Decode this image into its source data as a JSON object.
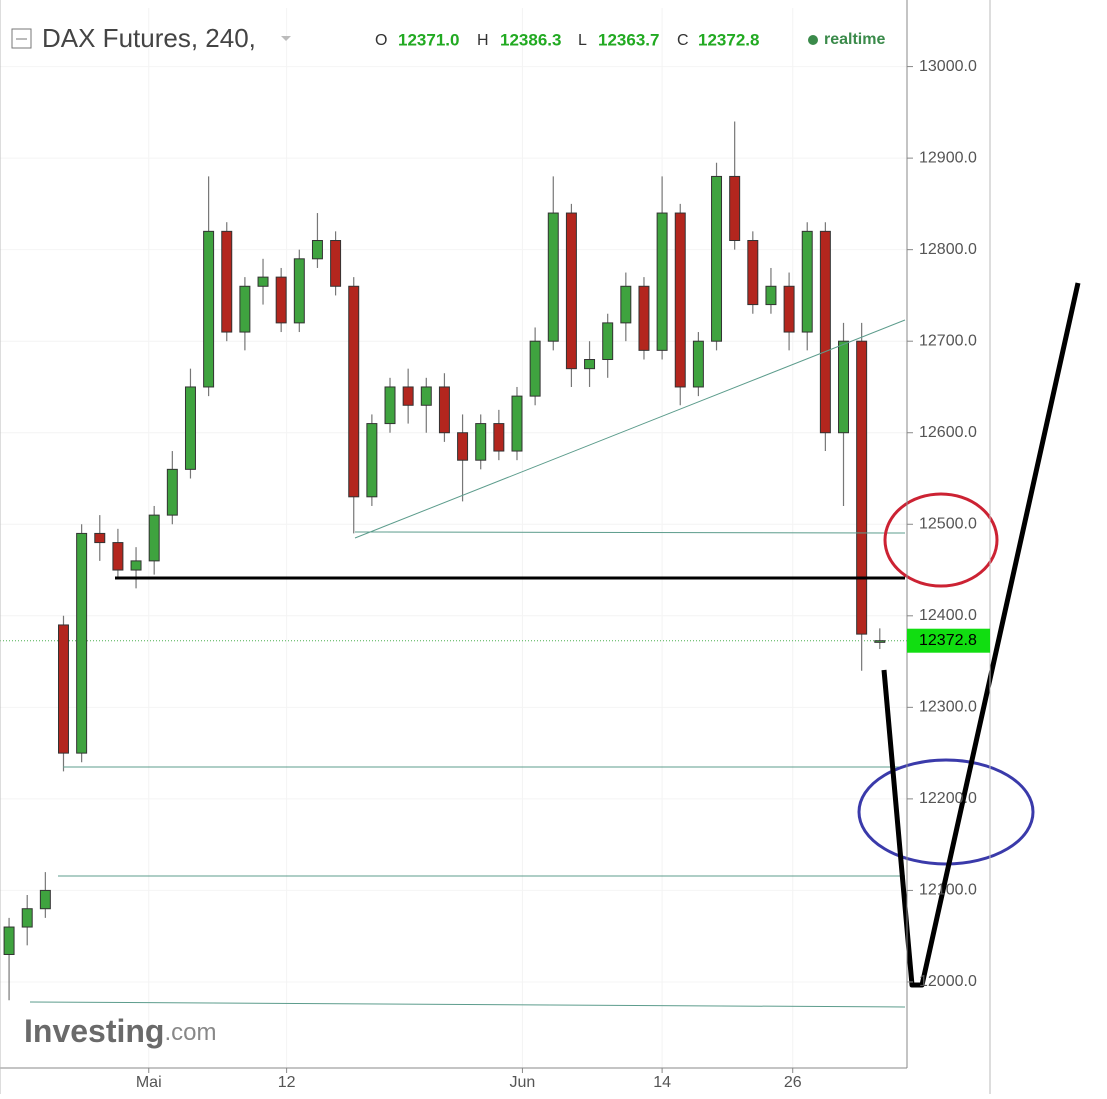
{
  "chart_data": {
    "type": "candlestick",
    "title": "DAX Futures, 240,",
    "header": {
      "o_label": "O",
      "o": "12371.0",
      "h_label": "H",
      "h": "12386.3",
      "l_label": "L",
      "l": "12363.7",
      "c_label": "C",
      "c": "12372.8",
      "status": "realtime"
    },
    "watermark": {
      "brand": "Investing",
      "suffix": ".com"
    },
    "x": [
      0.5,
      1.5,
      2.5,
      3.5,
      4.5,
      5.5,
      6.5,
      7.5,
      8.5,
      9.5,
      10.5,
      11.5,
      12.5,
      13.5,
      14.5,
      15.5,
      16.5,
      17.5,
      18.5,
      19.5,
      20.5,
      21.5,
      22.5,
      23.5,
      24.5,
      25.5,
      26.5,
      27.5,
      28.5,
      29.5,
      30.5,
      31.5,
      32.5,
      33.5,
      34.5,
      35.5,
      36.5,
      37.5,
      38.5,
      39.5,
      40.5,
      41.5,
      42.5,
      43.5,
      44.5,
      45.5,
      46.5,
      47.5,
      48.5
    ],
    "open": [
      12030,
      12060,
      12080,
      12390,
      12250,
      12490,
      12480,
      12450,
      12460,
      12510,
      12560,
      12650,
      12820,
      12710,
      12760,
      12770,
      12720,
      12790,
      12810,
      12760,
      12530,
      12610,
      12650,
      12630,
      12650,
      12600,
      12570,
      12610,
      12580,
      12640,
      12700,
      12840,
      12670,
      12680,
      12720,
      12760,
      12690,
      12840,
      12650,
      12700,
      12880,
      12810,
      12740,
      12760,
      12710,
      12820,
      12600,
      12700,
      12371
    ],
    "high": [
      12070,
      12095,
      12120,
      12400,
      12500,
      12510,
      12495,
      12475,
      12520,
      12580,
      12670,
      12880,
      12830,
      12770,
      12790,
      12780,
      12800,
      12840,
      12820,
      12770,
      12620,
      12660,
      12670,
      12660,
      12665,
      12620,
      12620,
      12625,
      12650,
      12715,
      12880,
      12850,
      12700,
      12730,
      12775,
      12770,
      12880,
      12850,
      12710,
      12895,
      12940,
      12820,
      12780,
      12775,
      12830,
      12830,
      12720,
      12720,
      12386.3
    ],
    "low": [
      11980,
      12040,
      12070,
      12230,
      12240,
      12460,
      12440,
      12430,
      12445,
      12500,
      12550,
      12640,
      12700,
      12690,
      12740,
      12710,
      12710,
      12780,
      12750,
      12490,
      12520,
      12600,
      12610,
      12600,
      12590,
      12525,
      12560,
      12570,
      12570,
      12630,
      12690,
      12650,
      12650,
      12660,
      12700,
      12680,
      12680,
      12630,
      12640,
      12690,
      12800,
      12730,
      12730,
      12690,
      12690,
      12580,
      12520,
      12340,
      12363.7
    ],
    "close": [
      12060,
      12080,
      12100,
      12250,
      12490,
      12480,
      12450,
      12460,
      12510,
      12560,
      12650,
      12820,
      12710,
      12760,
      12770,
      12720,
      12790,
      12810,
      12760,
      12530,
      12610,
      12650,
      12630,
      12650,
      12600,
      12570,
      12610,
      12580,
      12640,
      12700,
      12840,
      12670,
      12680,
      12720,
      12760,
      12690,
      12840,
      12650,
      12700,
      12880,
      12810,
      12740,
      12760,
      12710,
      12820,
      12600,
      12700,
      12380,
      12372.8
    ],
    "up_color": "#3fa33f",
    "down_color": "#b3261e",
    "outline_color": "#333333",
    "xlim": [
      0,
      50
    ],
    "xticks": [
      {
        "value": 8.2,
        "label": "Mai"
      },
      {
        "value": 15.8,
        "label": "12"
      },
      {
        "value": 28.8,
        "label": "Jun"
      },
      {
        "value": 36.5,
        "label": "14"
      },
      {
        "value": 43.7,
        "label": "26"
      }
    ],
    "ylim": [
      11906,
      13064
    ],
    "yticks": [
      {
        "value": 12000,
        "label": "12000.0"
      },
      {
        "value": 12100,
        "label": "12100.0"
      },
      {
        "value": 12200,
        "label": "12200.0"
      },
      {
        "value": 12300,
        "label": "12300.0"
      },
      {
        "value": 12400,
        "label": "12400.0"
      },
      {
        "value": 12500,
        "label": "12500.0"
      },
      {
        "value": 12600,
        "label": "12600.0"
      },
      {
        "value": 12700,
        "label": "12700.0"
      },
      {
        "value": 12800,
        "label": "12800.0"
      },
      {
        "value": 12900,
        "label": "12900.0"
      },
      {
        "value": 13000,
        "label": "13000.0"
      }
    ],
    "last_price": {
      "value": 12372.8,
      "label": "12372.8"
    }
  }
}
